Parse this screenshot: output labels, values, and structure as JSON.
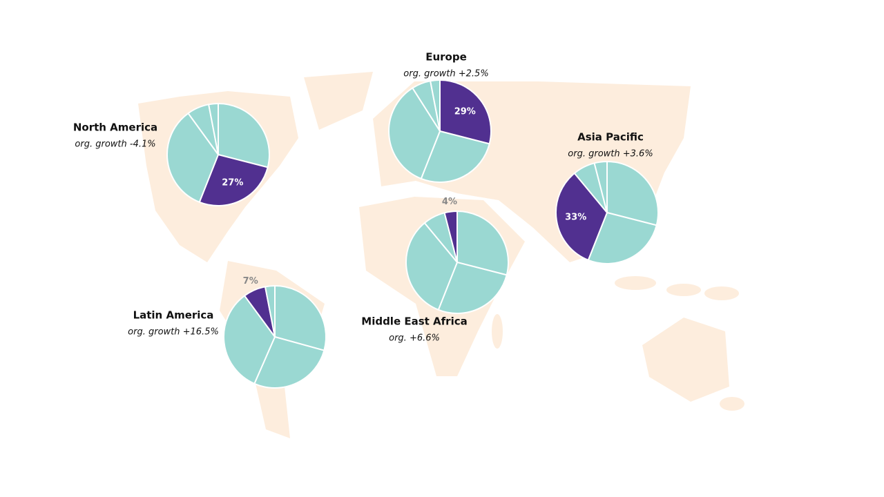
{
  "chart_data": [
    {
      "type": "pie",
      "title": "North America",
      "subtitle": "org. growth -4.1%",
      "values": [
        29,
        27,
        34,
        7,
        3
      ],
      "value_labels": [
        null,
        "27%",
        null,
        null,
        null
      ],
      "colors": [
        "#9ad8d2",
        "#513090",
        "#9ad8d2",
        "#9ad8d2",
        "#9ad8d2"
      ]
    },
    {
      "type": "pie",
      "title": "Europe",
      "subtitle": "org. growth +2.5%",
      "values": [
        29,
        27,
        35,
        6,
        3
      ],
      "value_labels": [
        "29%",
        null,
        null,
        null,
        null
      ],
      "colors": [
        "#513090",
        "#9ad8d2",
        "#9ad8d2",
        "#9ad8d2",
        "#9ad8d2"
      ]
    },
    {
      "type": "pie",
      "title": "Asia Pacific",
      "subtitle": "org. growth +3.6%",
      "values": [
        29,
        27,
        33,
        7,
        4
      ],
      "value_labels": [
        null,
        null,
        "33%",
        null,
        null
      ],
      "colors": [
        "#9ad8d2",
        "#9ad8d2",
        "#513090",
        "#9ad8d2",
        "#9ad8d2"
      ]
    },
    {
      "type": "pie",
      "title": "Middle East Africa",
      "subtitle": "org. +6.6%",
      "values": [
        29,
        27,
        33,
        7,
        4
      ],
      "value_labels": [
        null,
        null,
        null,
        null,
        "4%"
      ],
      "colors": [
        "#9ad8d2",
        "#9ad8d2",
        "#9ad8d2",
        "#9ad8d2",
        "#513090"
      ]
    },
    {
      "type": "pie",
      "title": "Latin America",
      "subtitle": "org. growth +16.5%",
      "values": [
        29,
        27,
        33,
        7,
        3
      ],
      "value_labels": [
        null,
        null,
        null,
        "7%",
        null
      ],
      "colors": [
        "#9ad8d2",
        "#9ad8d2",
        "#9ad8d2",
        "#513090",
        "#9ad8d2"
      ]
    }
  ]
}
